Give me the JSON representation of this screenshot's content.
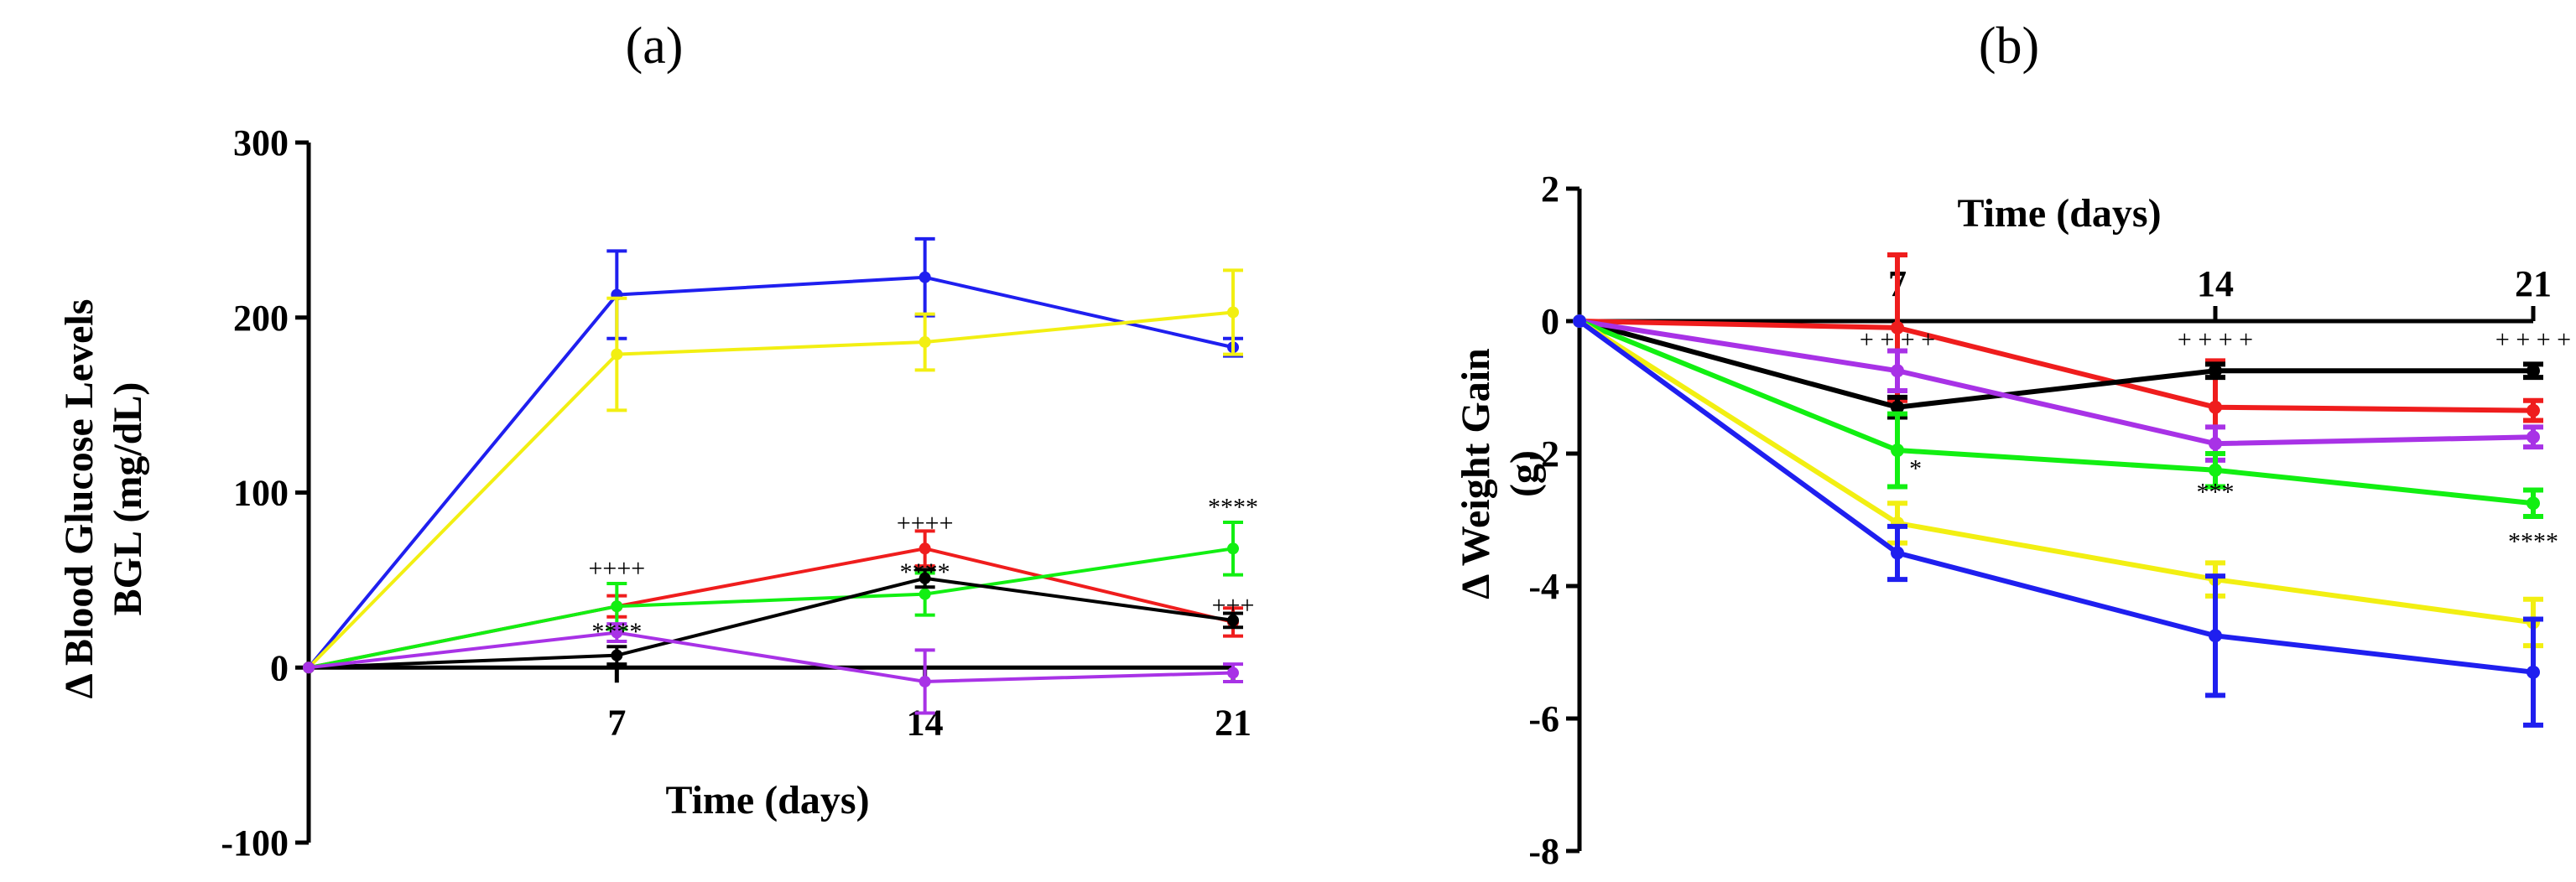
{
  "chart_data": [
    {
      "type": "line",
      "panel": "(a)",
      "xlabel": "Time (days)",
      "ylabel": [
        "Δ Blood Glucose Levels",
        "BGL (mg/dL)"
      ],
      "x": [
        0,
        7,
        14,
        21
      ],
      "xticks": [
        "7",
        "14",
        "21"
      ],
      "yticks": [
        "300",
        "200",
        "100",
        "0",
        "-100"
      ],
      "ylim": [
        -100,
        300
      ],
      "series": [
        {
          "name": "blue",
          "color": "#1f1fef",
          "values": [
            0,
            213,
            223,
            183
          ],
          "err": [
            0,
            25,
            22,
            5
          ]
        },
        {
          "name": "yellow",
          "color": "#f2ef12",
          "values": [
            0,
            179,
            186,
            203
          ],
          "err": [
            0,
            32,
            16,
            24
          ]
        },
        {
          "name": "red",
          "color": "#ef1d1d",
          "values": [
            0,
            35,
            68,
            26
          ],
          "err": [
            0,
            6,
            10,
            8
          ]
        },
        {
          "name": "green",
          "color": "#12ef12",
          "values": [
            0,
            35,
            42,
            68
          ],
          "err": [
            0,
            13,
            12,
            15
          ]
        },
        {
          "name": "black",
          "color": "#000000",
          "values": [
            0,
            7,
            51,
            27
          ],
          "err": [
            0,
            5,
            5,
            4
          ]
        },
        {
          "name": "purple",
          "color": "#a832e6",
          "values": [
            0,
            20,
            -8,
            -3
          ],
          "err": [
            0,
            5,
            18,
            5
          ]
        }
      ],
      "annotations": [
        {
          "text": "++++",
          "x": 7,
          "y": 52
        },
        {
          "text": "****",
          "x": 7,
          "y": 16
        },
        {
          "text": "++++",
          "x": 14,
          "y": 78
        },
        {
          "text": "****",
          "x": 14,
          "y": 50
        },
        {
          "text": "****",
          "x": 21,
          "y": 87
        },
        {
          "text": "+++",
          "x": 21,
          "y": 31
        }
      ]
    },
    {
      "type": "line",
      "panel": "(b)",
      "xlabel": "Time (days)",
      "ylabel": [
        "Δ Weight Gain",
        "(g)"
      ],
      "x": [
        0,
        7,
        14,
        21
      ],
      "xticks": [
        "7",
        "14",
        "21"
      ],
      "yticks": [
        "2",
        "0",
        "-2",
        "-4",
        "-6",
        "-8"
      ],
      "ylim": [
        -8,
        2
      ],
      "series": [
        {
          "name": "red",
          "color": "#ef1d1d",
          "values": [
            0,
            -0.1,
            -1.3,
            -1.35
          ],
          "err": [
            0,
            1.1,
            0.7,
            0.15
          ]
        },
        {
          "name": "black",
          "color": "#000000",
          "values": [
            0,
            -1.3,
            -0.75,
            -0.75
          ],
          "err": [
            0,
            0.15,
            0.1,
            0.1
          ]
        },
        {
          "name": "purple",
          "color": "#a832e6",
          "values": [
            0,
            -0.75,
            -1.85,
            -1.75
          ],
          "err": [
            0,
            0.3,
            0.25,
            0.15
          ]
        },
        {
          "name": "green",
          "color": "#12ef12",
          "values": [
            0,
            -1.95,
            -2.25,
            -2.75
          ],
          "err": [
            0,
            0.55,
            0.25,
            0.2
          ]
        },
        {
          "name": "yellow",
          "color": "#f2ef12",
          "values": [
            0,
            -3.05,
            -3.9,
            -4.55
          ],
          "err": [
            0,
            0.3,
            0.25,
            0.35
          ]
        },
        {
          "name": "blue",
          "color": "#1f1fef",
          "values": [
            0,
            -3.5,
            -4.75,
            -5.3
          ],
          "err": [
            0,
            0.4,
            0.9,
            0.8
          ]
        }
      ],
      "annotations": [
        {
          "text": "+ + + +",
          "x": 7,
          "y": -0.4
        },
        {
          "text": "+ + + +",
          "x": 14,
          "y": -0.4
        },
        {
          "text": "+ + + +",
          "x": 21,
          "y": -0.4
        },
        {
          "text": "*",
          "x": 7.4,
          "y": -2.35
        },
        {
          "text": "***",
          "x": 14,
          "y": -2.7
        },
        {
          "text": "****",
          "x": 21,
          "y": -3.45
        }
      ]
    }
  ]
}
